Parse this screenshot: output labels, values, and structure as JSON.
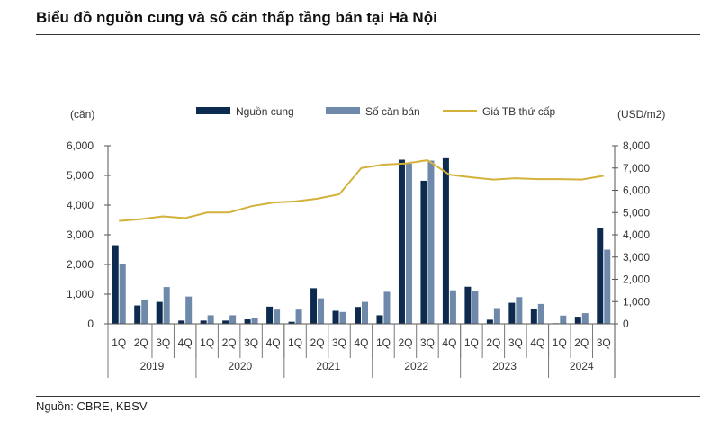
{
  "title": "Biểu đồ nguồn cung và số căn thấp tầng bán tại Hà Nội",
  "source": "Nguồn: CBRE, KBSV",
  "chart_data": {
    "type": "bar",
    "left_unit": "(căn)",
    "right_unit": "(USD/m2)",
    "left_ylim": [
      0,
      6000
    ],
    "right_ylim": [
      0,
      8000
    ],
    "left_ticks": [
      "0",
      "1,000",
      "2,000",
      "3,000",
      "4,000",
      "5,000",
      "6,000"
    ],
    "right_ticks": [
      "0",
      "1,000",
      "2,000",
      "3,000",
      "4,000",
      "5,000",
      "6,000",
      "7,000",
      "8,000"
    ],
    "years": [
      {
        "label": "2019",
        "quarters": 4
      },
      {
        "label": "2020",
        "quarters": 4
      },
      {
        "label": "2021",
        "quarters": 4
      },
      {
        "label": "2022",
        "quarters": 4
      },
      {
        "label": "2023",
        "quarters": 4
      },
      {
        "label": "2024",
        "quarters": 3
      }
    ],
    "categories": [
      "1Q",
      "2Q",
      "3Q",
      "4Q",
      "1Q",
      "2Q",
      "3Q",
      "4Q",
      "1Q",
      "2Q",
      "3Q",
      "4Q",
      "1Q",
      "2Q",
      "3Q",
      "4Q",
      "1Q",
      "2Q",
      "3Q",
      "4Q",
      "1Q",
      "2Q",
      "3Q"
    ],
    "legend_placement": "top",
    "series": [
      {
        "name": "Nguồn cung",
        "type": "bar",
        "axis": "left",
        "color": "#0d2a4f",
        "values": [
          2650,
          620,
          740,
          110,
          110,
          110,
          150,
          580,
          70,
          1200,
          440,
          570,
          290,
          5530,
          4820,
          5580,
          1250,
          140,
          710,
          490,
          20,
          240,
          3220
        ]
      },
      {
        "name": "Số căn bán",
        "type": "bar",
        "axis": "left",
        "color": "#6f89ab",
        "values": [
          2000,
          820,
          1240,
          920,
          290,
          290,
          200,
          480,
          480,
          860,
          400,
          740,
          1080,
          5400,
          5500,
          1130,
          1120,
          530,
          900,
          670,
          280,
          360,
          2500
        ]
      },
      {
        "name": "Giá TB thứ cấp",
        "type": "line",
        "axis": "right",
        "color": "#d4b13a",
        "values": [
          4620,
          4700,
          4830,
          4750,
          5000,
          5000,
          5280,
          5450,
          5500,
          5620,
          5820,
          7000,
          7150,
          7200,
          7350,
          6700,
          6580,
          6480,
          6540,
          6500,
          6500,
          6480,
          6650
        ]
      }
    ]
  }
}
